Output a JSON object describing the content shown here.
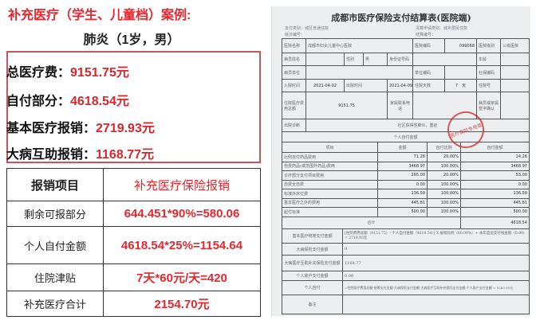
{
  "header": {
    "title": "补充医疗（学生、儿童档）案例:",
    "subtitle": "肺炎（1岁，男）"
  },
  "summary": [
    {
      "label": "总医疗费：",
      "value": "9151.75元"
    },
    {
      "label": "自付部分：",
      "value": "4618.54元"
    },
    {
      "label": "基本医疗报销：",
      "value": "2719.93元"
    },
    {
      "label": "大病互助报销：",
      "value": "1168.77元"
    }
  ],
  "reimbursement_table": {
    "headers": [
      "报销项目",
      "补充医疗保险报销"
    ],
    "rows": [
      [
        "剩余可报部分",
        "644.451*90%=580.06"
      ],
      [
        "个人自付金额",
        "4618.54*25%=1154.64"
      ],
      [
        "住院津贴",
        "7天*60元/天=420"
      ],
      [
        "补充医疗合计",
        "2154.70元"
      ]
    ]
  },
  "document": {
    "title": "成都市医疗保险支付结算表(医院端)",
    "pay_type": "支付类别：城区普通住院",
    "visit_no": "就诊编号：",
    "claim_type": "清算申请类别：城乡居民住院",
    "settle_no": "结算编号：",
    "hospital_label": "医院名称",
    "hospital": "成都市妇女儿童中心医院",
    "hospital_code_label": "医院编码",
    "hospital_code": "099068",
    "hospital_level_label": "医院级别",
    "hospital_level": "三级医院",
    "patient_label": "病员姓名",
    "sex_label": "性别",
    "sex": "男",
    "id_label": "身份证号码",
    "age_label": "年龄",
    "unit_label": "病员单位",
    "unit_code_label": "单位编码",
    "si_code_label": "社保编码",
    "admit_label": "入院时间",
    "admit": "2021-04-02",
    "discharge_label": "出院时间",
    "discharge": "2021-04-09",
    "days_label": "住院天数",
    "days": "7　天",
    "inpatient_no_label": "住院号",
    "total_label": "住院医疗费用总额",
    "total": "9151.75",
    "family_phone_label": "家属联系电话",
    "confirm_label": "病员或家属签字确认",
    "diagnosis_label": "出院诊断",
    "diagnosis": "社区获得性肺炎，重症",
    "self_pay_section": "个人自付金额",
    "cols": [
      "项目",
      "金额",
      "自付比例",
      "自付金额"
    ],
    "items": [
      [
        "比例自付药品费用",
        "71.28",
        "20.00%",
        "14.26"
      ],
      [
        "自费药品(或范围外药品)费用",
        "3468.97",
        "100.00%",
        "3468.97"
      ],
      [
        "诊疗部分支付项目费用",
        "265.00",
        "20.00%",
        "53.00"
      ],
      [
        "自费全自费",
        "0.00",
        "100.00%",
        "0.00"
      ],
      [
        "标准外床位费",
        "136.50",
        "100.00%",
        "136.50"
      ],
      [
        "基本医疗之外的费用",
        "445.81",
        "100.00%",
        "445.81"
      ],
      [
        "起付标准",
        "500.00",
        "100.00%",
        "500.00"
      ]
    ],
    "sum_label": "合计",
    "sum": "4618.54",
    "basic_label": "基本医疗统筹支付金额",
    "basic": "[住院费用总额（9151.75）- 个人自付金额（4618.54）] X 报销比例（60.00%）+ 本年度追支付线金额（0.00）= 2719.93元",
    "serious_label": "大病保险支付金额",
    "serious": "0",
    "mutual_label": "大病医疗互助补充保险支付金额",
    "mutual": "1168.77",
    "account_label": "个人账户支付金额",
    "account": "0.00",
    "personal_label": "个人自付",
    "personal": "=住院医疗费用总额-统筹支付金额-大病保险支付金额-大病医疗互助补充保险支付金额-个人账户支付金额 = 5263.05元",
    "remark_label": "备注",
    "stamp": "医疗保险专用章"
  },
  "colors": {
    "accent": "#e8262d",
    "box_border": "#c9545a"
  }
}
